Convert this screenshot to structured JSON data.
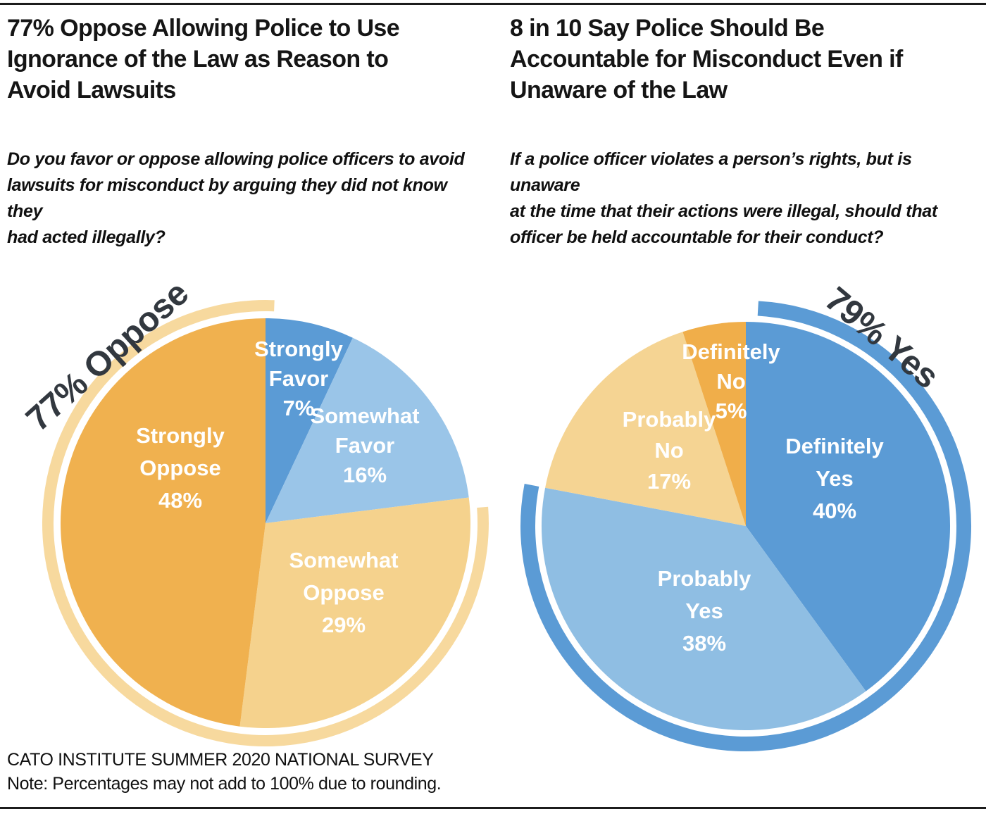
{
  "footer": {
    "source": "CATO INSTITUTE SUMMER 2020 NATIONAL SURVEY",
    "note": "Note: Percentages may not add to 100% due to rounding."
  },
  "chart_data": [
    {
      "type": "pie",
      "panel": "left",
      "title": "77% Oppose Allowing Police to Use Ignorance of the Law as Reason to Avoid Lawsuits",
      "title_lines": [
        "77% Oppose Allowing Police to Use",
        "Ignorance of the Law as Reason to",
        "Avoid Lawsuits"
      ],
      "question": "Do you favor or oppose allowing police officers to avoid lawsuits for misconduct by arguing they did not know they had acted illegally?",
      "question_lines": [
        "Do you favor or oppose allowing police officers to avoid",
        "lawsuits for misconduct by arguing they did not know they",
        "had acted illegally?"
      ],
      "units": "percent",
      "start_angle_deg": 0,
      "direction": "clockwise",
      "slices": [
        {
          "label": "Strongly Favor",
          "value": 7,
          "display": "7%",
          "color": "#5b9bd5",
          "label_lines": [
            "Strongly",
            "Favor",
            "7%"
          ]
        },
        {
          "label": "Somewhat Favor",
          "value": 16,
          "display": "16%",
          "color": "#9ac5e8",
          "label_lines": [
            "Somewhat",
            "Favor",
            "16%"
          ]
        },
        {
          "label": "Somewhat Oppose",
          "value": 29,
          "display": "29%",
          "color": "#f5d28d",
          "label_lines": [
            "Somewhat",
            "Oppose",
            "29%"
          ]
        },
        {
          "label": "Strongly Oppose",
          "value": 48,
          "display": "48%",
          "color": "#f0b14f",
          "label_lines": [
            "Strongly",
            "Oppose",
            "48%"
          ]
        }
      ],
      "callout": {
        "text": "77% Oppose",
        "value": 77,
        "group": "Oppose",
        "color": "#32383f"
      },
      "highlight_arc": {
        "covers": "Oppose",
        "pct": 77,
        "color": "#f7d99e"
      }
    },
    {
      "type": "pie",
      "panel": "right",
      "title": "8 in 10 Say Police Should Be Accountable for Misconduct Even if Unaware of the Law",
      "title_lines": [
        "8 in 10 Say Police Should Be",
        "Accountable for Misconduct Even if",
        "Unaware of the Law"
      ],
      "question": "If a police officer violates a person’s rights, but is unaware at the time that their actions were illegal, should that officer be held accountable for their conduct?",
      "question_lines": [
        "If a police officer violates a person’s rights, but is unaware",
        "at the time that their actions were illegal, should that",
        "officer be held accountable for their conduct?"
      ],
      "units": "percent",
      "start_angle_deg": 0,
      "direction": "clockwise",
      "slices": [
        {
          "label": "Definitely Yes",
          "value": 40,
          "display": "40%",
          "color": "#5b9bd5",
          "label_lines": [
            "Definitely",
            "Yes",
            "40%"
          ]
        },
        {
          "label": "Probably Yes",
          "value": 38,
          "display": "38%",
          "color": "#8fbee3",
          "label_lines": [
            "Probably",
            "Yes",
            "38%"
          ]
        },
        {
          "label": "Probably No",
          "value": 17,
          "display": "17%",
          "color": "#f5d493",
          "label_lines": [
            "Probably",
            "No",
            "17%"
          ]
        },
        {
          "label": "Definitely No",
          "value": 5,
          "display": "5%",
          "color": "#f0ae4a",
          "label_lines": [
            "Definitely",
            "No",
            "5%"
          ]
        }
      ],
      "callout": {
        "text": "79% Yes",
        "value": 79,
        "group": "Yes",
        "color": "#32383f"
      },
      "highlight_arc": {
        "covers": "Yes",
        "pct": 79,
        "color": "#5b9bd5"
      }
    }
  ]
}
